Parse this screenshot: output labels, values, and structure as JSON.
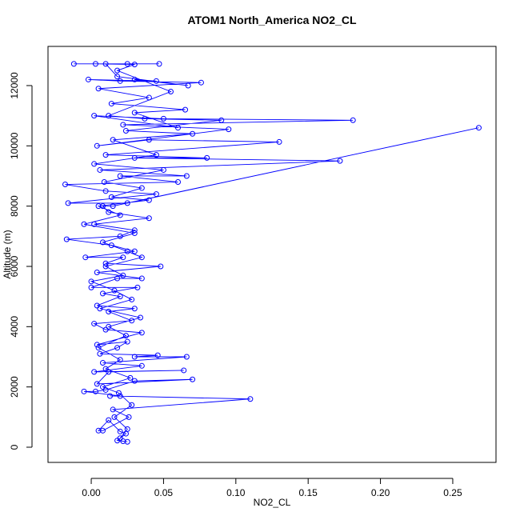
{
  "chart_data": {
    "type": "line",
    "title": "ATOM1 North_America NO2_CL",
    "x_label": "NO2_CL",
    "y_label": "Altitude (m)",
    "xlim": [
      -0.0299,
      0.2799
    ],
    "ylim": [
      -504,
      13300
    ],
    "xticks": [
      {
        "value": 0,
        "label": "0.00"
      },
      {
        "value": 0.05,
        "label": "0.05"
      },
      {
        "value": 0.1,
        "label": "0.10"
      },
      {
        "value": 0.15,
        "label": "0.15"
      },
      {
        "value": 0.2,
        "label": "0.20"
      },
      {
        "value": 0.25,
        "label": "0.25"
      }
    ],
    "yticks": [
      0,
      2000,
      4000,
      6000,
      8000,
      10000,
      12000
    ],
    "color": "#0000ff",
    "markers": true,
    "grid": false,
    "x": [
      0.022,
      0.025,
      0.018,
      0.024,
      0.02,
      0.012,
      0.005,
      0.008,
      0.026,
      0.015,
      0.11,
      0.013,
      0.02,
      -0.005,
      0.003,
      0.01,
      0.03,
      0.07,
      0.004,
      0.012,
      0.064,
      0.002,
      0.035,
      0.008,
      0.066,
      0.03,
      0.046,
      0.006,
      0.018,
      0.025,
      0.004,
      0.035,
      0.01,
      0.002,
      0.028,
      0.012,
      0.03,
      0.004,
      0.02,
      0.008,
      0.032,
      0.0,
      0.018,
      0.035,
      0.004,
      0.048,
      0.01,
      0.022,
      -0.004,
      0.03,
      0.014,
      -0.017,
      0.02,
      0.03,
      0.002,
      0.04,
      0.012,
      0.008,
      0.015,
      0.268,
      0.025,
      -0.016,
      0.045,
      0.01,
      -0.018,
      0.06,
      0.02,
      0.066,
      0.006,
      0.172,
      0.03,
      0.08,
      0.01,
      0.13,
      0.04,
      0.004,
      0.095,
      0.022,
      0.181,
      0.05,
      0.002,
      0.06,
      0.03,
      0.065,
      0.014,
      0.04,
      0.005,
      0.076,
      0.02,
      -0.002,
      0.045,
      0.03,
      0.067,
      0.018,
      0.01,
      -0.012,
      0.047,
      0.025,
      0.003,
      0.03,
      0.018,
      0.055,
      0.012,
      0.037,
      0.09,
      0.024,
      0.07,
      0.015,
      0.045,
      0.002,
      0.05,
      0.009,
      0.035,
      0.014,
      0.04,
      0.005,
      0.02,
      -0.005,
      0.03,
      0.008,
      0.025,
      0.035,
      0.01,
      0.022,
      0.0,
      0.016,
      0.028,
      0.006,
      0.034,
      0.012,
      0.024,
      0.005,
      0.02,
      0.01,
      0.027,
      0.008,
      0.019,
      0.028,
      0.016,
      0.025,
      0.02
    ],
    "values": [
      200,
      180,
      220,
      450,
      520,
      900,
      550,
      550,
      1000,
      1250,
      1600,
      1700,
      1700,
      1850,
      1850,
      1900,
      2200,
      2250,
      2100,
      2500,
      2550,
      2500,
      2700,
      2800,
      3000,
      3000,
      3050,
      3100,
      3300,
      3500,
      3400,
      3800,
      3900,
      4100,
      4200,
      4500,
      4600,
      4700,
      5000,
      5100,
      5300,
      5300,
      5600,
      5600,
      5800,
      6000,
      6100,
      6300,
      6300,
      6500,
      6700,
      6900,
      7000,
      7200,
      7400,
      7600,
      7800,
      8000,
      8000,
      10600,
      8100,
      8100,
      8400,
      8500,
      8720,
      8800,
      9000,
      9000,
      9200,
      9500,
      9600,
      9600,
      9700,
      10130,
      10200,
      10000,
      10550,
      10700,
      10850,
      10900,
      11000,
      10600,
      11100,
      11200,
      11400,
      11600,
      11900,
      12100,
      12150,
      12200,
      12150,
      12200,
      12000,
      12300,
      12720,
      12720,
      12720,
      12720,
      12720,
      12700,
      12500,
      11800,
      11000,
      10900,
      10850,
      10500,
      10400,
      10200,
      9700,
      9400,
      9200,
      8800,
      8600,
      8300,
      8200,
      8000,
      7700,
      7400,
      7100,
      6800,
      6500,
      6300,
      6000,
      5700,
      5500,
      5200,
      4900,
      4600,
      4300,
      4000,
      3700,
      3300,
      2900,
      2600,
      2300,
      2000,
      1800,
      1400,
      1000,
      600,
      300
    ]
  }
}
